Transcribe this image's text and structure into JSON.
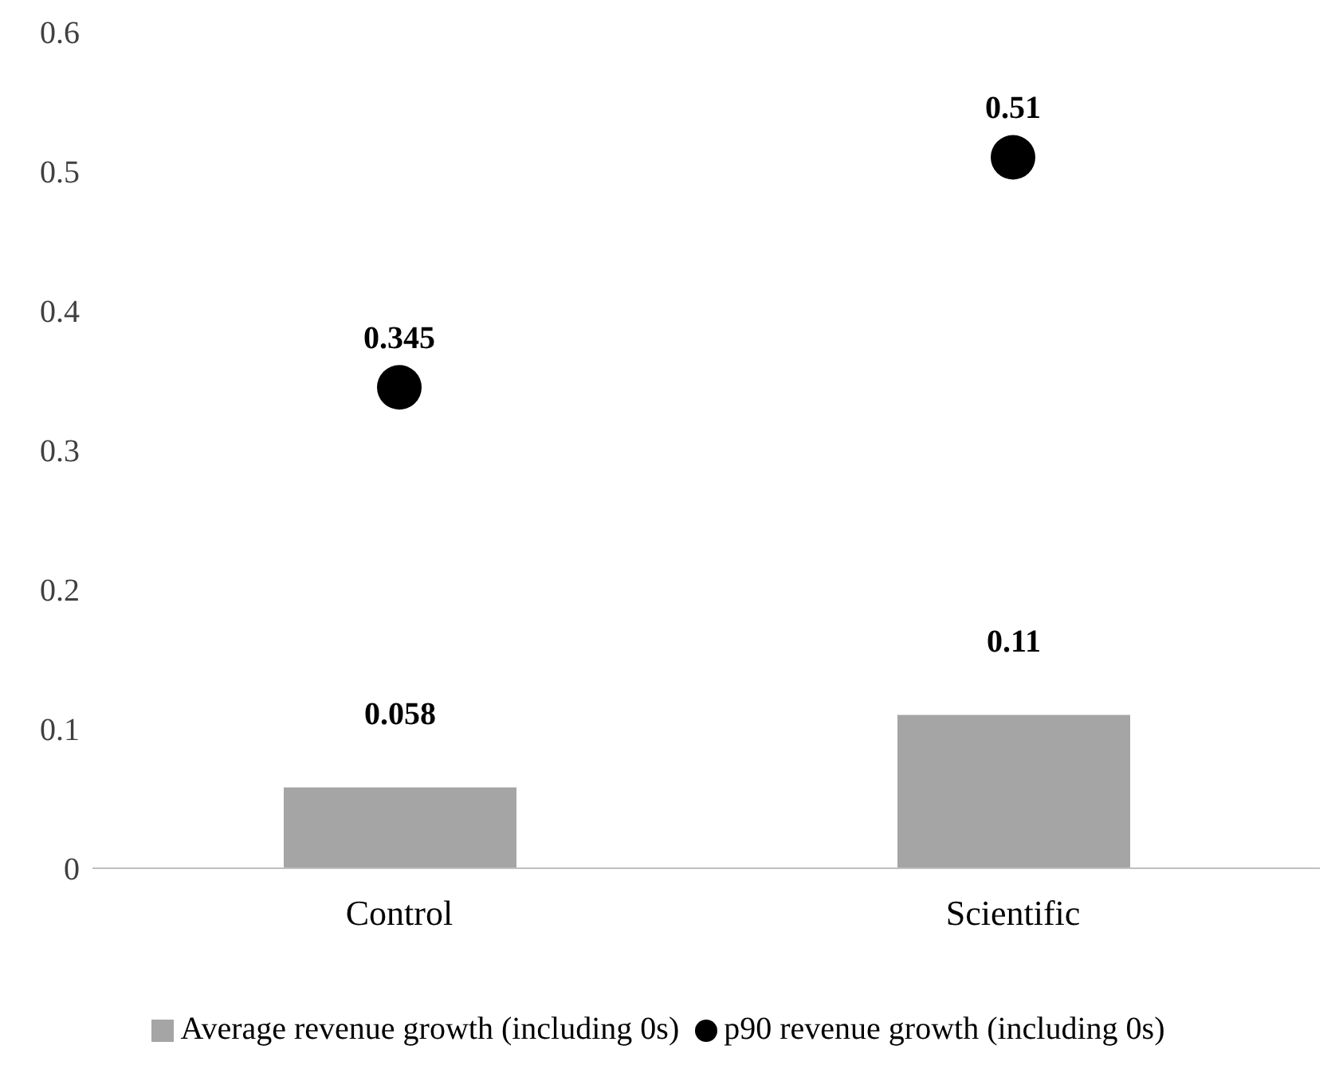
{
  "chart_data": {
    "type": "bar",
    "categories": [
      "Control",
      "Scientific"
    ],
    "series": [
      {
        "name": "Average revenue growth (including 0s)",
        "color": "#a5a5a5",
        "values": [
          0.058,
          0.11
        ]
      },
      {
        "name": "p90 revenue growth (including 0s)",
        "type": "scatter",
        "color": "#000000",
        "values": [
          0.345,
          0.51
        ]
      }
    ],
    "ylim": [
      0,
      0.6
    ],
    "yticks": [
      0,
      0.1,
      0.2,
      0.3,
      0.4,
      0.5,
      0.6
    ],
    "grid": false,
    "legend": "bottom",
    "marker": "circle",
    "data_labels": true
  }
}
